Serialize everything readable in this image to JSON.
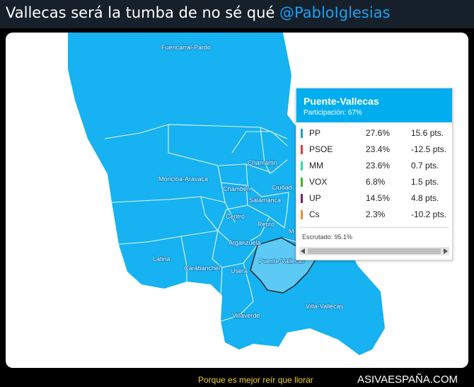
{
  "tweet": {
    "text": "Vallecas será la tumba de no sé qué ",
    "mention": "@PabloIglesias"
  },
  "map": {
    "districts": [
      {
        "name": "Fuencarral-Pardo"
      },
      {
        "name": "Moncloa-Aravaca"
      },
      {
        "name": "Chamartin"
      },
      {
        "name": "Chamberi"
      },
      {
        "name": "Salamanca"
      },
      {
        "name": "Ciudad"
      },
      {
        "name": "Centro"
      },
      {
        "name": "Retiro"
      },
      {
        "name": "Arganzuela"
      },
      {
        "name": "Latina"
      },
      {
        "name": "Carabanchel"
      },
      {
        "name": "Usera"
      },
      {
        "name": "Puente-Vallecas"
      },
      {
        "name": "Villaverde"
      },
      {
        "name": "Villa-Vallecas"
      },
      {
        "name": "M"
      }
    ],
    "colors": {
      "fill": "#16b2f1",
      "highlight": "#5ccaf5",
      "border": "#e6f6fd",
      "outline": "#263238"
    }
  },
  "tooltip": {
    "title": "Puente-Vallecas",
    "participation": "Participación: 67%",
    "rows": [
      {
        "party": "PP",
        "pct": "27.6%",
        "diff": "15.6 pts.",
        "color": "#1e9bd7"
      },
      {
        "party": "PSOE",
        "pct": "23.4%",
        "diff": "-12.5 pts.",
        "color": "#e53935"
      },
      {
        "party": "MM",
        "pct": "23.6%",
        "diff": "0.7 pts.",
        "color": "#2edfa3"
      },
      {
        "party": "VOX",
        "pct": "6.8%",
        "diff": "1.5 pts.",
        "color": "#3cb521"
      },
      {
        "party": "UP",
        "pct": "14.5%",
        "diff": "4.8 pts.",
        "color": "#7b1f6a"
      },
      {
        "party": "Cs",
        "pct": "2.3%",
        "diff": "-10.2 pts.",
        "color": "#f08a30"
      }
    ],
    "scrutiny": "Escrutado: 95.1%"
  },
  "footer": {
    "tagline": "Porque es mejor reír que llorar",
    "brand": "ASIVAESPAÑA.COM"
  }
}
